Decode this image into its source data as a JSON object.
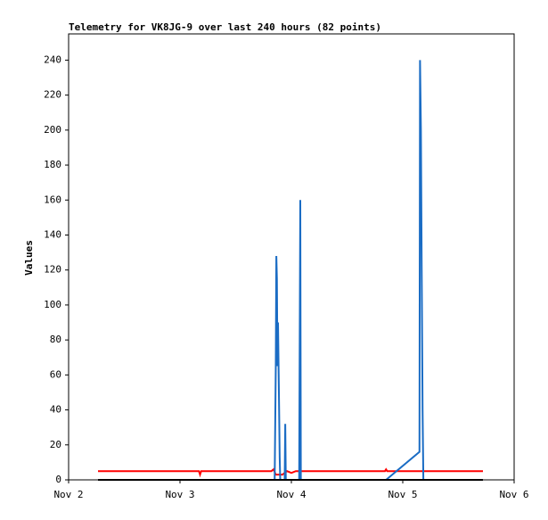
{
  "chart_data": {
    "type": "line",
    "title": "Telemetry for VK8JG-9 over last 240 hours (82 points)",
    "ylabel": "Values",
    "xlim": [
      0,
      4
    ],
    "xticks": [
      {
        "value": 0,
        "label": "Nov 2"
      },
      {
        "value": 1,
        "label": "Nov 3"
      },
      {
        "value": 2,
        "label": "Nov 4"
      },
      {
        "value": 3,
        "label": "Nov 5"
      },
      {
        "value": 4,
        "label": "Nov 6"
      }
    ],
    "ylim": [
      0,
      255
    ],
    "yticks": [
      0,
      20,
      40,
      60,
      80,
      100,
      120,
      140,
      160,
      180,
      200,
      220,
      240
    ],
    "series": [
      {
        "color": "#ff0000",
        "x": [
          0.264,
          1.17,
          1.18,
          1.19,
          1.82,
          1.84,
          1.86,
          1.92,
          1.96,
          2.0,
          2.04,
          2.84,
          2.85,
          2.86,
          3.72
        ],
        "values": [
          5,
          5,
          3,
          5,
          5,
          6,
          3,
          3,
          5,
          4,
          5,
          5,
          6,
          5,
          5
        ]
      },
      {
        "color": "#1a6cc4",
        "x": [
          1.82,
          1.85,
          1.86,
          1.865,
          1.87,
          1.875,
          1.88,
          1.885,
          1.89,
          1.895,
          1.9,
          1.94,
          1.945,
          1.95,
          2.07,
          2.075,
          2.08,
          2.085,
          2.1,
          2.85,
          3.15,
          3.155,
          3.163,
          3.17,
          3.178,
          3.185
        ],
        "values": [
          0,
          0,
          65,
          128,
          115,
          65,
          90,
          65,
          40,
          13,
          0,
          0,
          32,
          0,
          0,
          80,
          160,
          0,
          0,
          0,
          16,
          240,
          200,
          120,
          40,
          0
        ]
      },
      {
        "color": "#000000",
        "x": [
          0.264,
          3.72
        ],
        "values": [
          0,
          0
        ]
      }
    ]
  }
}
